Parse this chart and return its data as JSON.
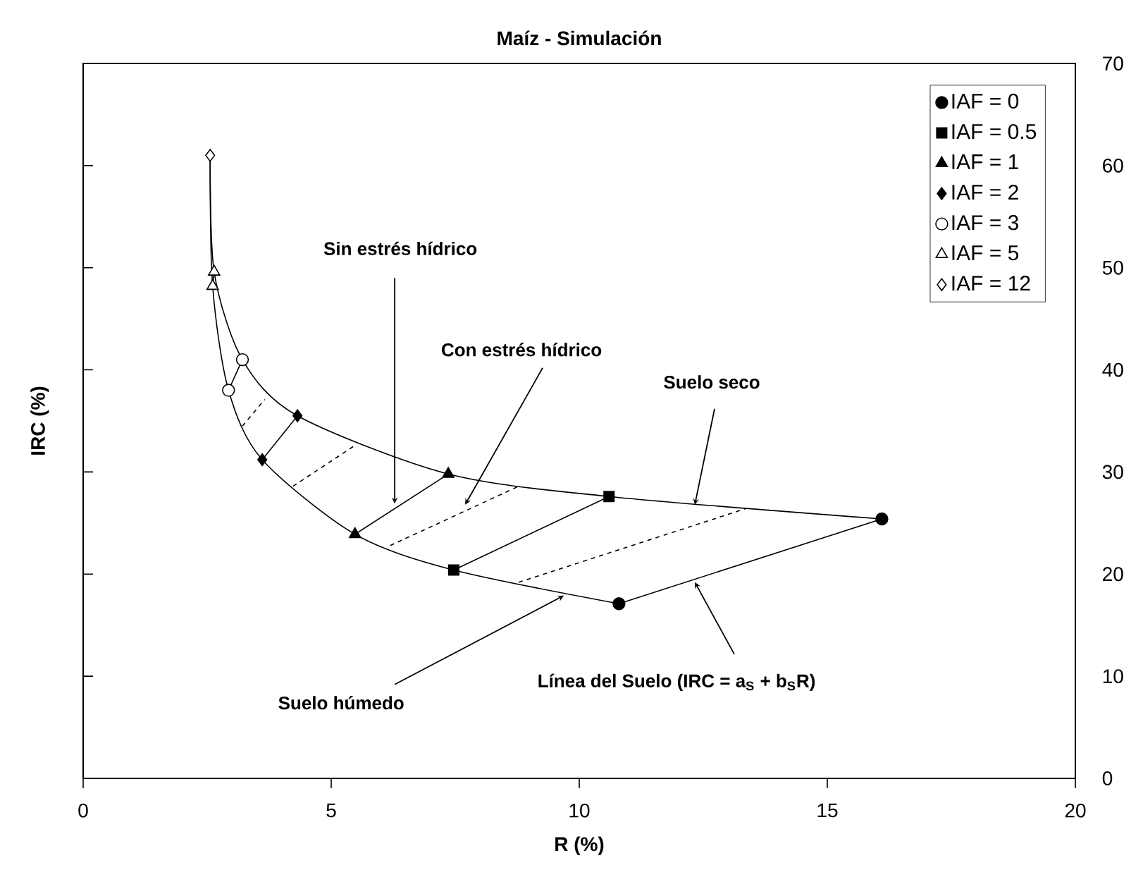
{
  "chart_data": {
    "type": "line",
    "title": "Maíz - Simulación",
    "xlabel": "R (%)",
    "ylabel": "IRC (%)",
    "xlim": [
      0,
      20
    ],
    "xticks": [
      0,
      5,
      10,
      15,
      20
    ],
    "ylim": [
      0,
      70
    ],
    "yticks": [
      0,
      10,
      20,
      30,
      40,
      50,
      60,
      70
    ],
    "grid": false,
    "legend": "top right",
    "line_style": "solid",
    "series": [
      {
        "name": "IAF = 0",
        "marker": "circle",
        "color": "#000000",
        "x": [
          10.8,
          16.1
        ],
        "values": [
          17.1,
          25.4
        ]
      },
      {
        "name": "IAF = 0.5",
        "marker": "square",
        "color": "#000000",
        "x": [
          7.47,
          10.6
        ],
        "values": [
          20.4,
          27.6
        ]
      },
      {
        "name": "IAF = 1",
        "marker": "triangle",
        "color": "#000000",
        "x": [
          5.48,
          7.36
        ],
        "values": [
          23.9,
          29.8
        ]
      },
      {
        "name": "IAF = 2",
        "marker": "diamond",
        "color": "#000000",
        "x": [
          3.61,
          4.32
        ],
        "values": [
          31.2,
          35.5
        ]
      },
      {
        "name": "IAF = 3",
        "marker": "circle",
        "color": "#ffffff",
        "x": [
          2.93,
          3.21
        ],
        "values": [
          38.0,
          41.0
        ]
      },
      {
        "name": "IAF = 5",
        "marker": "triangle",
        "color": "#ffffff",
        "x": [
          2.61,
          2.64
        ],
        "values": [
          48.2,
          49.6
        ]
      },
      {
        "name": "IAF = 12",
        "marker": "diamond",
        "color": "#ffffff",
        "x": [
          2.56
        ],
        "values": [
          61.0
        ]
      },
      {
        "marker": "none",
        "color": "#000000",
        "x": [
          2.56,
          2.64,
          3.21,
          4.32,
          7.36,
          10.6,
          16.1
        ],
        "values": [
          61.0,
          49.6,
          41.0,
          35.5,
          29.8,
          27.6,
          25.4
        ]
      },
      {
        "marker": "none",
        "color": "#000000",
        "x": [
          2.56,
          2.61,
          2.93,
          3.61,
          5.48,
          7.47,
          10.8
        ],
        "values": [
          61.0,
          48.2,
          38.0,
          31.2,
          23.9,
          20.4,
          17.1
        ]
      },
      {
        "marker": "none",
        "line_style": "dashed",
        "color": "#000000",
        "x": [
          3.21,
          3.66
        ],
        "values": [
          34.5,
          37.1
        ]
      },
      {
        "marker": "none",
        "line_style": "dashed",
        "color": "#000000",
        "x": [
          4.23,
          5.51
        ],
        "values": [
          28.6,
          32.7
        ]
      },
      {
        "marker": "none",
        "line_style": "dashed",
        "color": "#000000",
        "x": [
          6.19,
          8.78
        ],
        "values": [
          22.8,
          28.6
        ]
      },
      {
        "marker": "none",
        "line_style": "dashed",
        "color": "#000000",
        "x": [
          8.78,
          13.35
        ],
        "values": [
          19.2,
          26.4
        ]
      }
    ],
    "annotations": [
      {
        "text": "Sin estrés hídrico",
        "x": 6.28,
        "y": 26.9
      },
      {
        "text": "Con estrés hídrico",
        "x": 7.7,
        "y": 26.8
      },
      {
        "text": "Suelo seco",
        "x": 12.33,
        "y": 26.8
      },
      {
        "text": "Suelo húmedo",
        "x": 9.69,
        "y": 17.9
      },
      {
        "text": "Línea del Suelo (IRC = a$_{S}$ + b$_{S}$R)",
        "x": 12.33,
        "y": 19.2
      }
    ]
  }
}
